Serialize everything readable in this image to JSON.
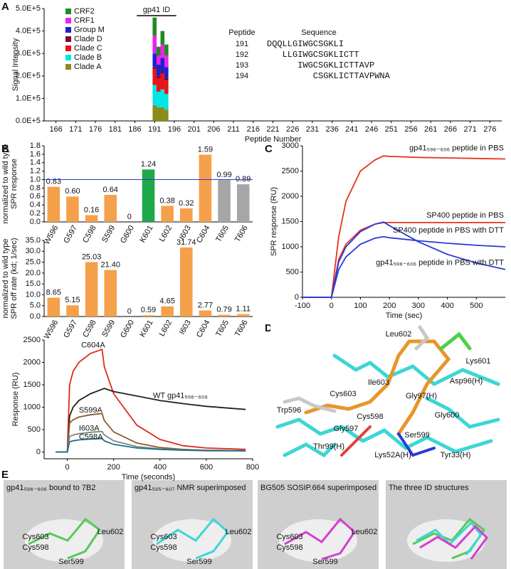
{
  "panel_labels": [
    "A",
    "B",
    "C",
    "D",
    "E"
  ],
  "chart_data": [
    {
      "type": "bar",
      "stacked": true,
      "xlabel": "Peptide Number",
      "ylabel": [
        "Signal Intensity"
      ],
      "xlim": [
        163,
        279
      ],
      "xticks": [
        166,
        171,
        176,
        181,
        186,
        191,
        196,
        201,
        206,
        211,
        216,
        221,
        226,
        231,
        236,
        241,
        246,
        251,
        256,
        261,
        266,
        271,
        276
      ],
      "ylim": [
        0,
        500000
      ],
      "yticks": [
        {
          "value": 0,
          "label": "0.0E+5"
        },
        {
          "value": 100000,
          "label": "1.0E+5"
        },
        {
          "value": 200000,
          "label": "2.0E+5"
        },
        {
          "value": 300000,
          "label": "3.0E+5"
        },
        {
          "value": 400000,
          "label": "4.0E+5"
        },
        {
          "value": 500000,
          "label": "5.0E+5"
        }
      ],
      "x": [
        191,
        192,
        193,
        194
      ],
      "series": [
        {
          "name": "Clade A",
          "color": "#8b8b1a",
          "values": [
            70000,
            60000,
            60000,
            50000
          ]
        },
        {
          "name": "Clade B",
          "color": "#00e5e5",
          "values": [
            90000,
            70000,
            80000,
            70000
          ]
        },
        {
          "name": "Clade C",
          "color": "#e8131b",
          "values": [
            70000,
            60000,
            70000,
            60000
          ]
        },
        {
          "name": "Clade D",
          "color": "#7b0c2a",
          "values": [
            10000,
            10000,
            10000,
            10000
          ]
        },
        {
          "name": "Group M",
          "color": "#1f1fd0",
          "values": [
            60000,
            50000,
            60000,
            50000
          ]
        },
        {
          "name": "CRF1",
          "color": "#ee22ee",
          "values": [
            80000,
            40000,
            60000,
            50000
          ]
        },
        {
          "name": "CRF2",
          "color": "#1f8a1f",
          "values": [
            80000,
            40000,
            60000,
            50000
          ]
        }
      ],
      "bracket_label": "gp41 ID",
      "table_header": [
        "Peptide",
        "Sequence"
      ],
      "table_rows": [
        [
          "191",
          "DQQLLGIWGCSGKLI"
        ],
        [
          "192",
          "LLGIWGCSGKLICTT"
        ],
        [
          "193",
          "IWGCSGKLICTTAVP"
        ],
        [
          "194",
          "CSGKLICTTAVPWNA"
        ]
      ]
    },
    {
      "type": "bar",
      "ylabel": [
        "SPR response",
        "normalized to wild type"
      ],
      "categories": [
        "W596",
        "G597",
        "C598",
        "S599",
        "G600",
        "K601",
        "L602",
        "I603",
        "C604",
        "T605",
        "T606"
      ],
      "values": [
        0.83,
        0.6,
        0.16,
        0.64,
        0,
        1.24,
        0.38,
        0.32,
        1.59,
        0.99,
        0.89
      ],
      "value_labels": [
        "0.83",
        "0.60",
        "0.16",
        "0.64",
        "0",
        "1.24",
        "0.38",
        "0.32",
        "1.59",
        "0.99",
        "0.89"
      ],
      "colors": [
        "#f5a04a",
        "#f5a04a",
        "#f5a04a",
        "#f5a04a",
        "#f5a04a",
        "#1fa84a",
        "#f5a04a",
        "#f5a04a",
        "#f5a04a",
        "#a6a6a6",
        "#a6a6a6"
      ],
      "reference_line": 1,
      "reference_color": "#2a3ad6",
      "ylim": [
        0,
        1.8
      ],
      "yticks": [
        {
          "value": 0,
          "label": "0.0"
        },
        0.2,
        0.4,
        0.6,
        0.8,
        {
          "value": 1,
          "label": "1.0"
        },
        1.2,
        1.4,
        1.6,
        1.8
      ]
    },
    {
      "type": "bar",
      "ylabel": [
        "SPR off rate (kd; 1/sec)",
        "normalized to wild type"
      ],
      "categories": [
        "W596",
        "G597",
        "C598",
        "S599",
        "G600",
        "K601",
        "L602",
        "I603",
        "C604",
        "T605",
        "T606"
      ],
      "values": [
        8.65,
        5.15,
        25.03,
        21.4,
        0,
        0.59,
        4.65,
        31.74,
        2.77,
        0.79,
        1.11
      ],
      "value_labels": [
        "8.65",
        "5.15",
        "25.03",
        "21.40",
        "0",
        "0.59",
        "4.65",
        "31.74",
        "2.77",
        "0.79",
        "1.11"
      ],
      "colors": [
        "#f5a04a",
        "#f5a04a",
        "#f5a04a",
        "#f5a04a",
        "#f5a04a",
        "#f5a04a",
        "#f5a04a",
        "#f5a04a",
        "#f5a04a",
        "#f5a04a",
        "#f5a04a"
      ],
      "ylim": [
        0,
        35
      ],
      "yticks": [
        {
          "value": 0,
          "label": "0.0"
        },
        {
          "value": 5,
          "label": "5.0"
        },
        {
          "value": 10,
          "label": "10.0"
        },
        {
          "value": 15,
          "label": "15.0"
        },
        {
          "value": 20,
          "label": "20.0"
        },
        {
          "value": 25,
          "label": "25.0"
        },
        {
          "value": 30,
          "label": "30.0"
        },
        {
          "value": 35,
          "label": "35.0"
        }
      ]
    },
    {
      "type": "line",
      "xlabel": "Time (seconds)",
      "ylabel": [
        "Response (RU)"
      ],
      "xlim": [
        -100,
        800
      ],
      "xticks": [
        0,
        200,
        400,
        600,
        800
      ],
      "ylim": [
        -150,
        2500
      ],
      "yticks": [
        0,
        500,
        1000,
        1500,
        2000,
        2500
      ],
      "x": [
        -50,
        0,
        10,
        25,
        50,
        100,
        150,
        160,
        200,
        300,
        400,
        500,
        600,
        770
      ],
      "series": [
        {
          "color": "#e02a1a",
          "values": [
            0,
            0,
            1500,
            1800,
            2000,
            2200,
            2290,
            1900,
            1300,
            600,
            280,
            140,
            90,
            60
          ]
        },
        {
          "color": "#222222",
          "values": [
            0,
            0,
            800,
            1000,
            1150,
            1300,
            1400,
            1420,
            1350,
            1250,
            1150,
            1080,
            1020,
            950
          ]
        },
        {
          "color": "#8a5a2a",
          "values": [
            0,
            0,
            650,
            720,
            780,
            830,
            860,
            700,
            450,
            200,
            100,
            60,
            40,
            30
          ]
        },
        {
          "color": "#7a8a7a",
          "values": [
            0,
            0,
            350,
            380,
            410,
            440,
            460,
            380,
            250,
            120,
            70,
            50,
            40,
            30
          ]
        },
        {
          "color": "#1f6f8a",
          "values": [
            0,
            0,
            230,
            250,
            270,
            290,
            300,
            250,
            170,
            90,
            60,
            40,
            30,
            25
          ]
        }
      ],
      "annotations": [
        "C604A",
        "WT gp41₅₉₆₋₆₀₆",
        "S599A",
        "I603A",
        "C598A"
      ]
    },
    {
      "type": "line",
      "xlabel": "Time (sec)",
      "ylabel": [
        "SPR response (RU)"
      ],
      "xlim": [
        -100,
        600
      ],
      "xticks": [
        -100,
        0,
        100,
        200,
        300,
        400,
        500
      ],
      "ylim": [
        0,
        3000
      ],
      "yticks": [
        0,
        500,
        1000,
        1500,
        2000,
        2500,
        3000
      ],
      "x": [
        -100,
        0,
        25,
        50,
        100,
        150,
        180,
        200,
        300,
        400,
        500,
        600
      ],
      "series": [
        {
          "color": "#e8321e",
          "values": [
            0,
            0,
            1200,
            1900,
            2500,
            2720,
            2800,
            2790,
            2770,
            2760,
            2750,
            2740
          ]
        },
        {
          "color": "#e8321e",
          "values": [
            0,
            0,
            750,
            1050,
            1330,
            1450,
            1480,
            1480,
            1480,
            1480,
            1480,
            1480
          ]
        },
        {
          "color": "#2a3ad6",
          "values": [
            0,
            0,
            550,
            800,
            1050,
            1170,
            1200,
            1180,
            1120,
            1070,
            1030,
            1000
          ]
        },
        {
          "color": "#2a3ad6",
          "values": [
            0,
            0,
            700,
            1000,
            1300,
            1450,
            1490,
            1420,
            1100,
            850,
            680,
            550
          ]
        }
      ],
      "annotations": [
        "gp41₅₉₆₋₆₀₆ peptide in PBS",
        "SP400 peptide in PBS",
        "SP400 peptide in PBS with DTT",
        "gp41₅₉₆₋₆₀₆ peptide in PBS with DTT"
      ]
    }
  ],
  "structure_d": {
    "labels": [
      "Leu602",
      "Lys601",
      "Ile603",
      "Asp96(H)",
      "Cys603",
      "Gly97(H)",
      "Trp596",
      "Cys598",
      "Gly600",
      "Gly597",
      "Ser599",
      "Thr99(H)",
      "Lys52A(H)",
      "Tyr33(H)"
    ]
  },
  "structure_e": {
    "panels": [
      {
        "title": "gp41₅₉₆₋₆₀₆ bound to 7B2",
        "labels": [
          "Cys603",
          "Cys598",
          "Leu602",
          "Ser599"
        ]
      },
      {
        "title": "gp41₅₉₅₋₆₀₇ NMR superimposed",
        "labels": [
          "Cys603",
          "Cys598",
          "Leu602",
          "Ser599"
        ]
      },
      {
        "title": "BG505 SOSIP.664 superimposed",
        "labels": [
          "Cys603",
          "Cys598",
          "Leu602",
          "Ser599"
        ]
      },
      {
        "title": "The three ID structures",
        "labels": []
      }
    ]
  }
}
